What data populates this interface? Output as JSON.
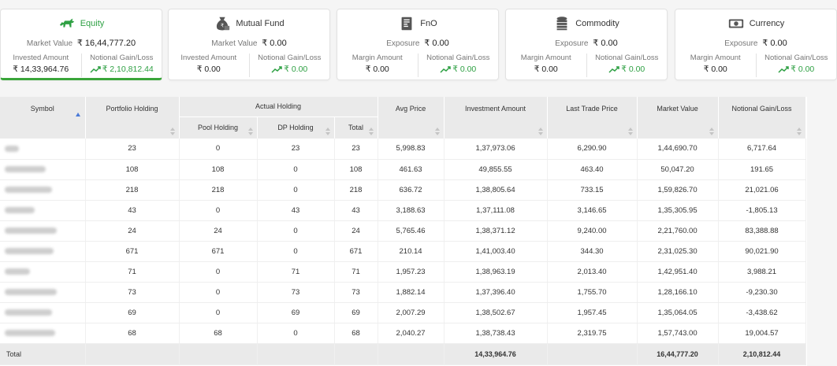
{
  "cards": [
    {
      "title": "Equity",
      "icon": "bull-icon",
      "active": true,
      "primary_label": "Market Value",
      "primary_value": "₹ 16,44,777.20",
      "left_label": "Invested Amount",
      "left_value": "₹ 14,33,964.76",
      "right_label": "Notional Gain/Loss",
      "right_value": "₹ 2,10,812.44"
    },
    {
      "title": "Mutual Fund",
      "icon": "money-bag-icon",
      "active": false,
      "primary_label": "Market Value",
      "primary_value": "₹ 0.00",
      "left_label": "Invested Amount",
      "left_value": "₹ 0.00",
      "right_label": "Notional Gain/Loss",
      "right_value": "₹ 0.00"
    },
    {
      "title": "FnO",
      "icon": "document-icon",
      "active": false,
      "primary_label": "Exposure",
      "primary_value": "₹ 0.00",
      "left_label": "Margin Amount",
      "left_value": "₹ 0.00",
      "right_label": "Notional Gain/Loss",
      "right_value": "₹ 0.00"
    },
    {
      "title": "Commodity",
      "icon": "coins-stack-icon",
      "active": false,
      "primary_label": "Exposure",
      "primary_value": "₹ 0.00",
      "left_label": "Margin Amount",
      "left_value": "₹ 0.00",
      "right_label": "Notional Gain/Loss",
      "right_value": "₹ 0.00"
    },
    {
      "title": "Currency",
      "icon": "banknote-icon",
      "active": false,
      "primary_label": "Exposure",
      "primary_value": "₹ 0.00",
      "left_label": "Margin Amount",
      "left_value": "₹ 0.00",
      "right_label": "Notional Gain/Loss",
      "right_value": "₹ 0.00"
    }
  ],
  "colors": {
    "gain": "#2ea043",
    "header_bg": "#eaeaea"
  },
  "table": {
    "headers": {
      "symbol": "Symbol",
      "portfolio_holding": "Portfolio Holding",
      "actual_holding": "Actual Holding",
      "pool_holding": "Pool Holding",
      "dp_holding": "DP Holding",
      "total": "Total",
      "avg_price": "Avg Price",
      "investment_amount": "Investment Amount",
      "last_trade_price": "Last Trade Price",
      "market_value": "Market Value",
      "notional_gain_loss": "Notional Gain/Loss"
    },
    "rows": [
      {
        "portfolio": "23",
        "pool": "0",
        "dp": "23",
        "total": "23",
        "avg": "5,998.83",
        "invest": "1,37,973.06",
        "ltp": "6,290.90",
        "mv": "1,44,690.70",
        "gain": "6,717.64"
      },
      {
        "portfolio": "108",
        "pool": "108",
        "dp": "0",
        "total": "108",
        "avg": "461.63",
        "invest": "49,855.55",
        "ltp": "463.40",
        "mv": "50,047.20",
        "gain": "191.65"
      },
      {
        "portfolio": "218",
        "pool": "218",
        "dp": "0",
        "total": "218",
        "avg": "636.72",
        "invest": "1,38,805.64",
        "ltp": "733.15",
        "mv": "1,59,826.70",
        "gain": "21,021.06"
      },
      {
        "portfolio": "43",
        "pool": "0",
        "dp": "43",
        "total": "43",
        "avg": "3,188.63",
        "invest": "1,37,111.08",
        "ltp": "3,146.65",
        "mv": "1,35,305.95",
        "gain": "-1,805.13"
      },
      {
        "portfolio": "24",
        "pool": "24",
        "dp": "0",
        "total": "24",
        "avg": "5,765.46",
        "invest": "1,38,371.12",
        "ltp": "9,240.00",
        "mv": "2,21,760.00",
        "gain": "83,388.88"
      },
      {
        "portfolio": "671",
        "pool": "671",
        "dp": "0",
        "total": "671",
        "avg": "210.14",
        "invest": "1,41,003.40",
        "ltp": "344.30",
        "mv": "2,31,025.30",
        "gain": "90,021.90"
      },
      {
        "portfolio": "71",
        "pool": "0",
        "dp": "71",
        "total": "71",
        "avg": "1,957.23",
        "invest": "1,38,963.19",
        "ltp": "2,013.40",
        "mv": "1,42,951.40",
        "gain": "3,988.21"
      },
      {
        "portfolio": "73",
        "pool": "0",
        "dp": "73",
        "total": "73",
        "avg": "1,882.14",
        "invest": "1,37,396.40",
        "ltp": "1,755.70",
        "mv": "1,28,166.10",
        "gain": "-9,230.30"
      },
      {
        "portfolio": "69",
        "pool": "0",
        "dp": "69",
        "total": "69",
        "avg": "2,007.29",
        "invest": "1,38,502.67",
        "ltp": "1,957.45",
        "mv": "1,35,064.05",
        "gain": "-3,438.62"
      },
      {
        "portfolio": "68",
        "pool": "68",
        "dp": "0",
        "total": "68",
        "avg": "2,040.27",
        "invest": "1,38,738.43",
        "ltp": "2,319.75",
        "mv": "1,57,743.00",
        "gain": "19,004.57"
      }
    ],
    "total_row": {
      "label": "Total",
      "invest": "14,33,964.76",
      "mv": "16,44,777.20",
      "gain": "2,10,812.44"
    }
  }
}
